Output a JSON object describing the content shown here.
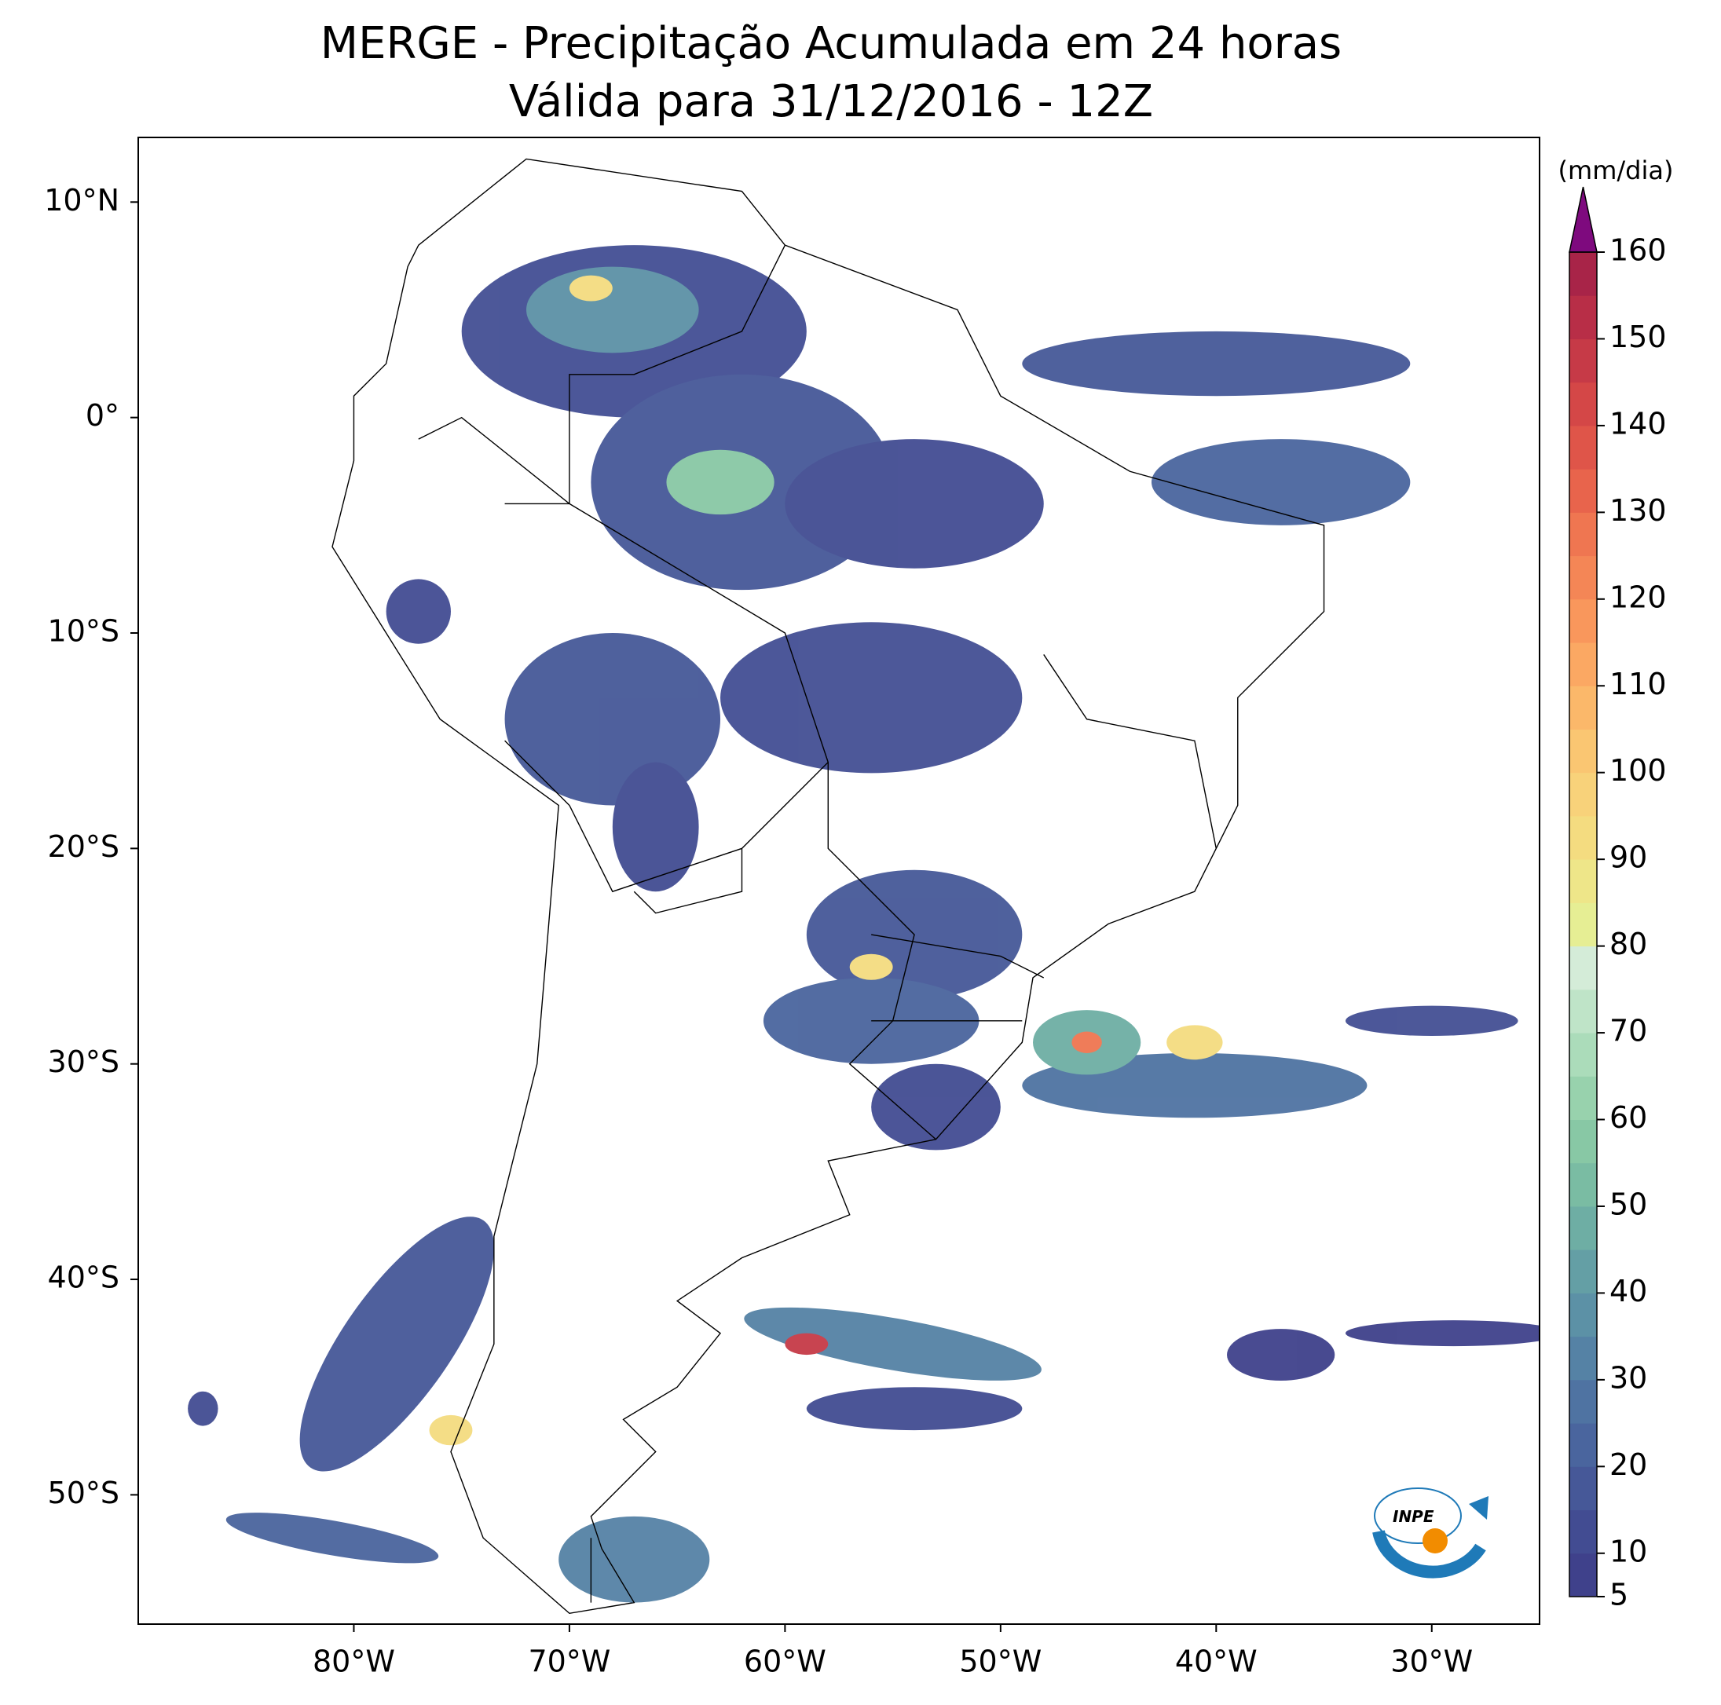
{
  "title": "MERGE - Precipitação Acumulada em 24 horas",
  "subtitle": "Válida para 31/12/2016 - 12Z",
  "map": {
    "xlim": [
      -90,
      -25
    ],
    "ylim": [
      -56,
      13
    ],
    "xticks": [
      {
        "value": -80,
        "label": "80°W"
      },
      {
        "value": -70,
        "label": "70°W"
      },
      {
        "value": -60,
        "label": "60°W"
      },
      {
        "value": -50,
        "label": "50°W"
      },
      {
        "value": -40,
        "label": "40°W"
      },
      {
        "value": -30,
        "label": "30°W"
      }
    ],
    "yticks": [
      {
        "value": 10,
        "label": "10°N"
      },
      {
        "value": 0,
        "label": "0°"
      },
      {
        "value": -10,
        "label": "10°S"
      },
      {
        "value": -20,
        "label": "20°S"
      },
      {
        "value": -30,
        "label": "30°S"
      },
      {
        "value": -40,
        "label": "40°S"
      },
      {
        "value": -50,
        "label": "50°S"
      }
    ]
  },
  "colorbar": {
    "label": "(mm/dia)",
    "ticks": [
      5,
      10,
      20,
      30,
      40,
      50,
      60,
      70,
      80,
      90,
      100,
      110,
      120,
      130,
      140,
      150,
      160
    ],
    "colors": [
      "#3f418b",
      "#424c92",
      "#465898",
      "#4a659e",
      "#4f73a2",
      "#5582a5",
      "#5c91a6",
      "#649fa5",
      "#6eaea4",
      "#7abca3",
      "#88c8a5",
      "#98d2ad",
      "#abdcba",
      "#bfe4c8",
      "#d4ecd8",
      "#e6ee94",
      "#eee689",
      "#f4dc80",
      "#f8d27a",
      "#fac672",
      "#fbb86a",
      "#fba863",
      "#f9975c",
      "#f48656",
      "#ef7651",
      "#e8644c",
      "#df5549",
      "#d44747",
      "#c63a47",
      "#b82e47",
      "#a82448"
    ],
    "extend_color": "#7e0a7e"
  },
  "logo_text": "INPE"
}
